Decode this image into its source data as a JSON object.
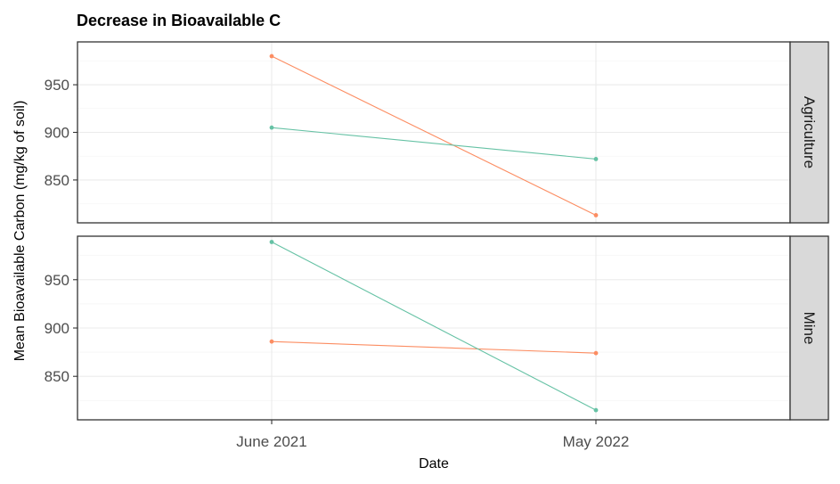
{
  "chart_data": {
    "type": "line",
    "title": "Decrease in Bioavailable C",
    "xlabel": "Date",
    "ylabel": "Mean Bioavailable Carbon (mg/kg of soil)",
    "categories": [
      "June 2021",
      "May 2022"
    ],
    "y_ticks": [
      850,
      900,
      950
    ],
    "grid": true,
    "legend": "none",
    "facets": [
      {
        "label": "Agriculture",
        "ylim": [
          805,
          995
        ],
        "series": [
          {
            "color": "#FC8D62",
            "values": [
              980,
              813
            ]
          },
          {
            "color": "#66C2A5",
            "values": [
              905,
              872
            ]
          }
        ]
      },
      {
        "label": "Mine",
        "ylim": [
          805,
          995
        ],
        "series": [
          {
            "color": "#FC8D62",
            "values": [
              886,
              874
            ]
          },
          {
            "color": "#66C2A5",
            "values": [
              989,
              815
            ]
          }
        ]
      }
    ]
  }
}
